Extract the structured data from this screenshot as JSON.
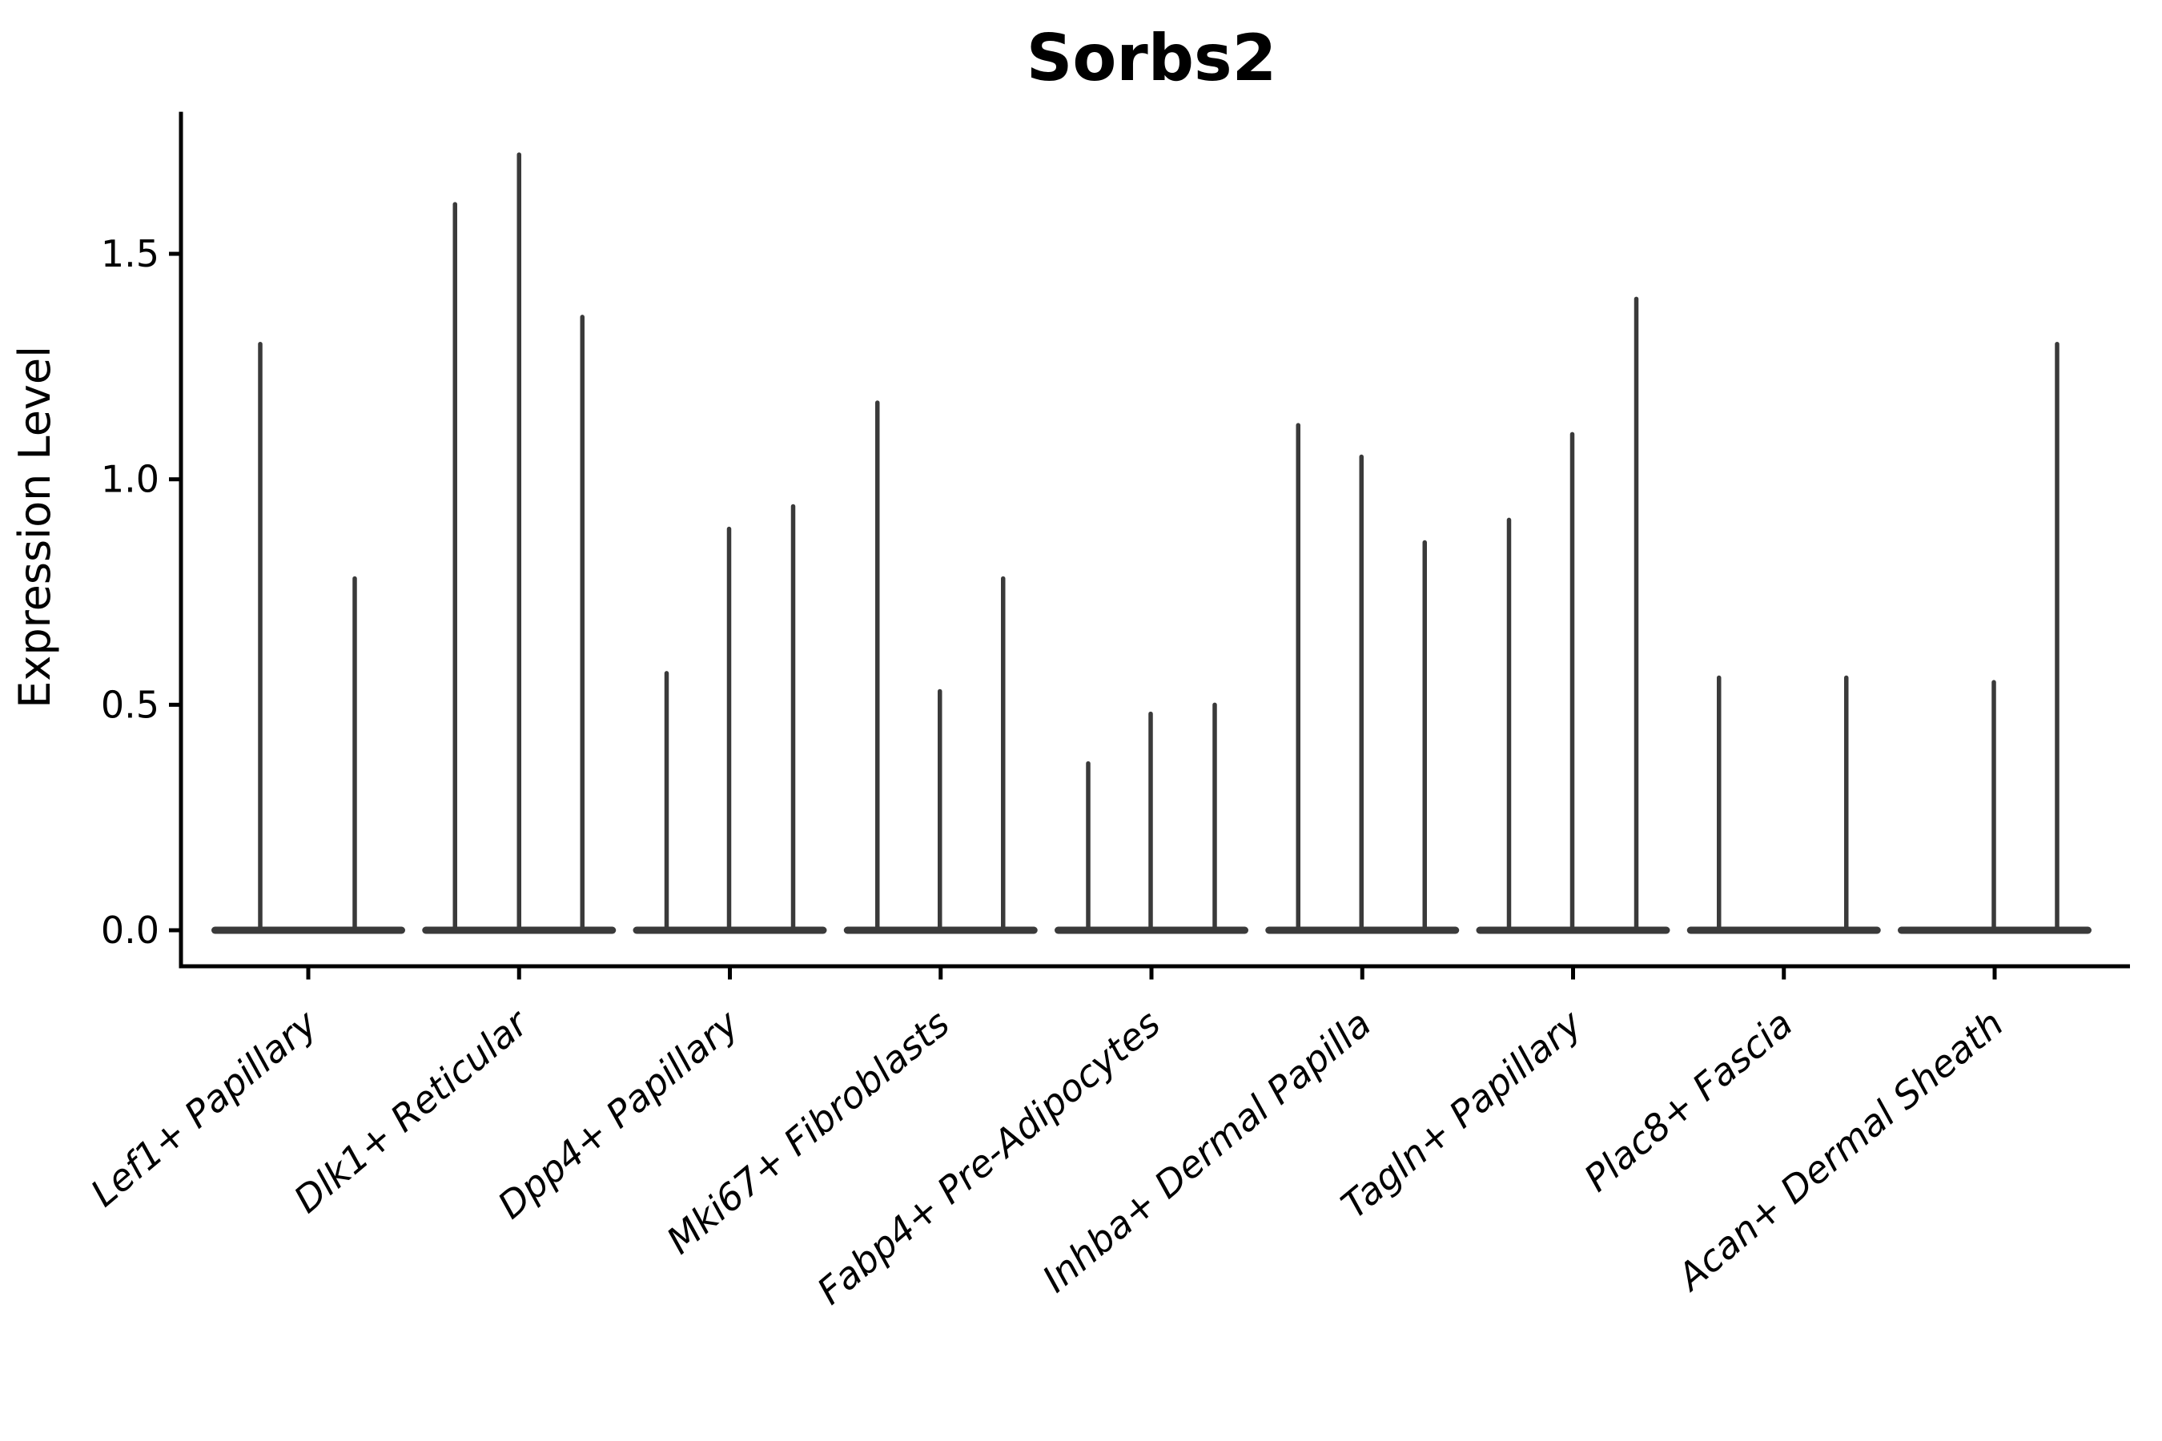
{
  "page": {
    "background": "#ffffff"
  },
  "chart_data": {
    "type": "violin",
    "title": "Sorbs2",
    "xlabel": "",
    "ylabel": "Expression Level",
    "categories": [
      "Lef1+ Papillary",
      "Dlk1+ Reticular",
      "Dpp4+ Papillary",
      "Mki67+ Fibroblasts",
      "Fabp4+ Pre-Adipocytes",
      "Inhba+ Dermal Papilla",
      "Tagln+ Papillary",
      "Plac8+ Fascia",
      "Acan+ Dermal Sheath"
    ],
    "ytick_labels": [
      "0.0",
      "0.5",
      "1.0",
      "1.5"
    ],
    "ytick_values": [
      0.0,
      0.5,
      1.0,
      1.5
    ],
    "ylim": [
      -0.08,
      1.815
    ],
    "grid": false,
    "legend": "none",
    "description": "Thin violin plot of Sorbs2 expression; each category holds 2-3 narrow violins flat at 0 with a single vertical tail reaching the listed max expression level.",
    "style": {
      "violin_color": "#3a3a3a",
      "axis_color": "#000000",
      "text_color": "#000000",
      "background": "#ffffff",
      "x_label_rotation_deg": 40,
      "x_labels_italic": true
    },
    "groups": [
      {
        "category": "Lef1+ Papillary",
        "violins": [
          {
            "dx": -60,
            "max": 1.3
          },
          {
            "dx": 58,
            "max": 0.78
          }
        ]
      },
      {
        "category": "Dlk1+ Reticular",
        "violins": [
          {
            "dx": -80,
            "max": 1.61
          },
          {
            "dx": 0,
            "max": 1.72
          },
          {
            "dx": 79,
            "max": 1.36
          }
        ]
      },
      {
        "category": "Dpp4+ Papillary",
        "violins": [
          {
            "dx": -79,
            "max": 0.57
          },
          {
            "dx": -1,
            "max": 0.89
          },
          {
            "dx": 79,
            "max": 0.94
          }
        ]
      },
      {
        "category": "Mki67+ Fibroblasts",
        "violins": [
          {
            "dx": -79,
            "max": 1.17
          },
          {
            "dx": -1,
            "max": 0.53
          },
          {
            "dx": 78,
            "max": 0.78
          }
        ]
      },
      {
        "category": "Fabp4+ Pre-Adipocytes",
        "violins": [
          {
            "dx": -79,
            "max": 0.37
          },
          {
            "dx": -1,
            "max": 0.48
          },
          {
            "dx": 79,
            "max": 0.5
          }
        ]
      },
      {
        "category": "Inhba+ Dermal Papilla",
        "violins": [
          {
            "dx": -80,
            "max": 1.12
          },
          {
            "dx": -1,
            "max": 1.05
          },
          {
            "dx": 78,
            "max": 0.86
          }
        ]
      },
      {
        "category": "Tagln+ Papillary",
        "violins": [
          {
            "dx": -80,
            "max": 0.91
          },
          {
            "dx": -1,
            "max": 1.1
          },
          {
            "dx": 79,
            "max": 1.4
          }
        ]
      },
      {
        "category": "Plac8+ Fascia",
        "violins": [
          {
            "dx": -81,
            "max": 0.56
          },
          {
            "dx": 78,
            "max": 0.56
          }
        ]
      },
      {
        "category": "Acan+ Dermal Sheath",
        "violins": [
          {
            "dx": -1,
            "max": 0.55
          },
          {
            "dx": 78,
            "max": 1.3
          }
        ]
      }
    ]
  }
}
